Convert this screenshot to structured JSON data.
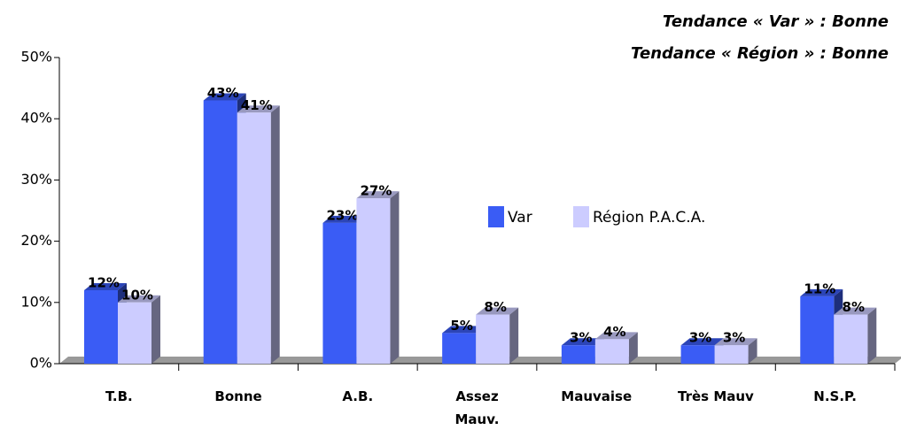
{
  "chart_data": {
    "type": "bar3d",
    "annotations": [
      "Tendance « Var » : Bonne",
      "Tendance « Région » : Bonne"
    ],
    "categories": [
      "T.B.",
      "Bonne",
      "A.B.",
      "Assez Mauv.",
      "Mauvaise",
      "Très Mauv",
      "N.S.P."
    ],
    "series": [
      {
        "name": "Var",
        "color": "#3a5cf5",
        "values": [
          12,
          43,
          23,
          5,
          3,
          3,
          11
        ],
        "value_labels": [
          "12%",
          "43%",
          "23%",
          "5%",
          "3%",
          "3%",
          "11%"
        ]
      },
      {
        "name": "Région P.A.C.A.",
        "color": "#ccccff",
        "values": [
          10,
          41,
          27,
          8,
          4,
          3,
          8
        ],
        "value_labels": [
          "10%",
          "41%",
          "27%",
          "8%",
          "4%",
          "3%",
          "8%"
        ]
      }
    ],
    "ylim": [
      0,
      50
    ],
    "yticks": [
      {
        "value": 0,
        "label": "0%"
      },
      {
        "value": 10,
        "label": "10%"
      },
      {
        "value": 20,
        "label": "20%"
      },
      {
        "value": 30,
        "label": "30%"
      },
      {
        "value": 40,
        "label": "40%"
      },
      {
        "value": 50,
        "label": "50%"
      }
    ]
  }
}
